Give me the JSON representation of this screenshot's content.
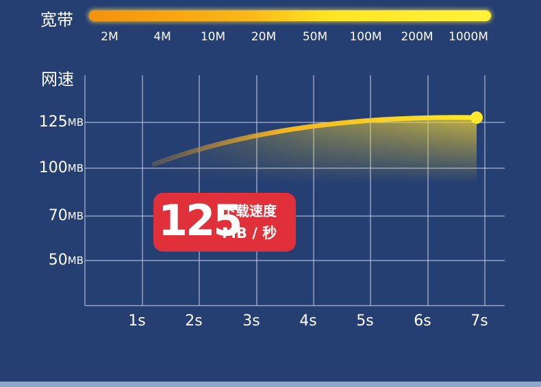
{
  "bandwidth": {
    "label": "宽带",
    "ticks": [
      "2M",
      "4M",
      "10M",
      "20M",
      "50M",
      "100M",
      "200M",
      "1000M"
    ]
  },
  "speed_chart": {
    "y_label": "网速",
    "y_labels": [
      {
        "number": "125",
        "unit": "MB"
      },
      {
        "number": "100",
        "unit": "MB"
      },
      {
        "number": "70",
        "unit": "MB"
      },
      {
        "number": "50",
        "unit": "MB"
      }
    ],
    "x_labels": [
      "1s",
      "2s",
      "3s",
      "4s",
      "5s",
      "6s",
      "7s"
    ]
  },
  "badge": {
    "value": "125",
    "title": "下载速度",
    "unit": "MB / 秒"
  }
}
